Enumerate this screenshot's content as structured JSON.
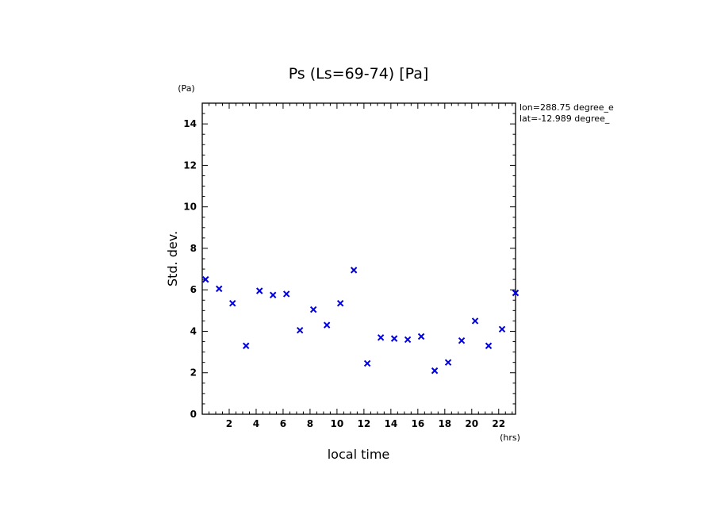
{
  "chart_data": {
    "type": "scatter",
    "title": "Ps (Ls=69-74) [Pa]",
    "xlabel": "local time",
    "ylabel": "Std. dev.",
    "x_unit": "(hrs)",
    "y_unit": "(Pa)",
    "xlim": [
      0,
      23.25
    ],
    "ylim": [
      0,
      15
    ],
    "x_ticks": [
      2,
      4,
      6,
      8,
      10,
      12,
      14,
      16,
      18,
      20,
      22
    ],
    "y_ticks": [
      0,
      2,
      4,
      6,
      8,
      10,
      12,
      14
    ],
    "x_ticks_labels": [
      "2",
      "4",
      "6",
      "8",
      "10",
      "12",
      "14",
      "16",
      "18",
      "20",
      "22"
    ],
    "y_ticks_labels": [
      "0",
      "2",
      "4",
      "6",
      "8",
      "10",
      "12",
      "14"
    ],
    "annotations": [
      "lon=288.75 degree_e",
      "lat=-12.989 degree_"
    ],
    "marker": "x",
    "marker_color": "#0000dd",
    "grid": false,
    "series": [
      {
        "x": [
          0.25,
          1.25,
          2.25,
          3.25,
          4.25,
          5.25,
          6.25,
          7.25,
          8.25,
          9.25,
          10.25,
          11.25,
          12.25,
          13.25,
          14.25,
          15.25,
          16.25,
          17.25,
          18.25,
          19.25,
          20.25,
          21.25,
          22.25,
          23.25
        ],
        "y": [
          6.5,
          6.05,
          5.35,
          3.3,
          5.95,
          5.75,
          5.8,
          4.05,
          5.05,
          4.3,
          5.35,
          6.95,
          2.45,
          3.7,
          3.65,
          3.6,
          3.75,
          2.1,
          2.5,
          3.55,
          4.5,
          3.3,
          4.1,
          5.85
        ]
      }
    ]
  }
}
